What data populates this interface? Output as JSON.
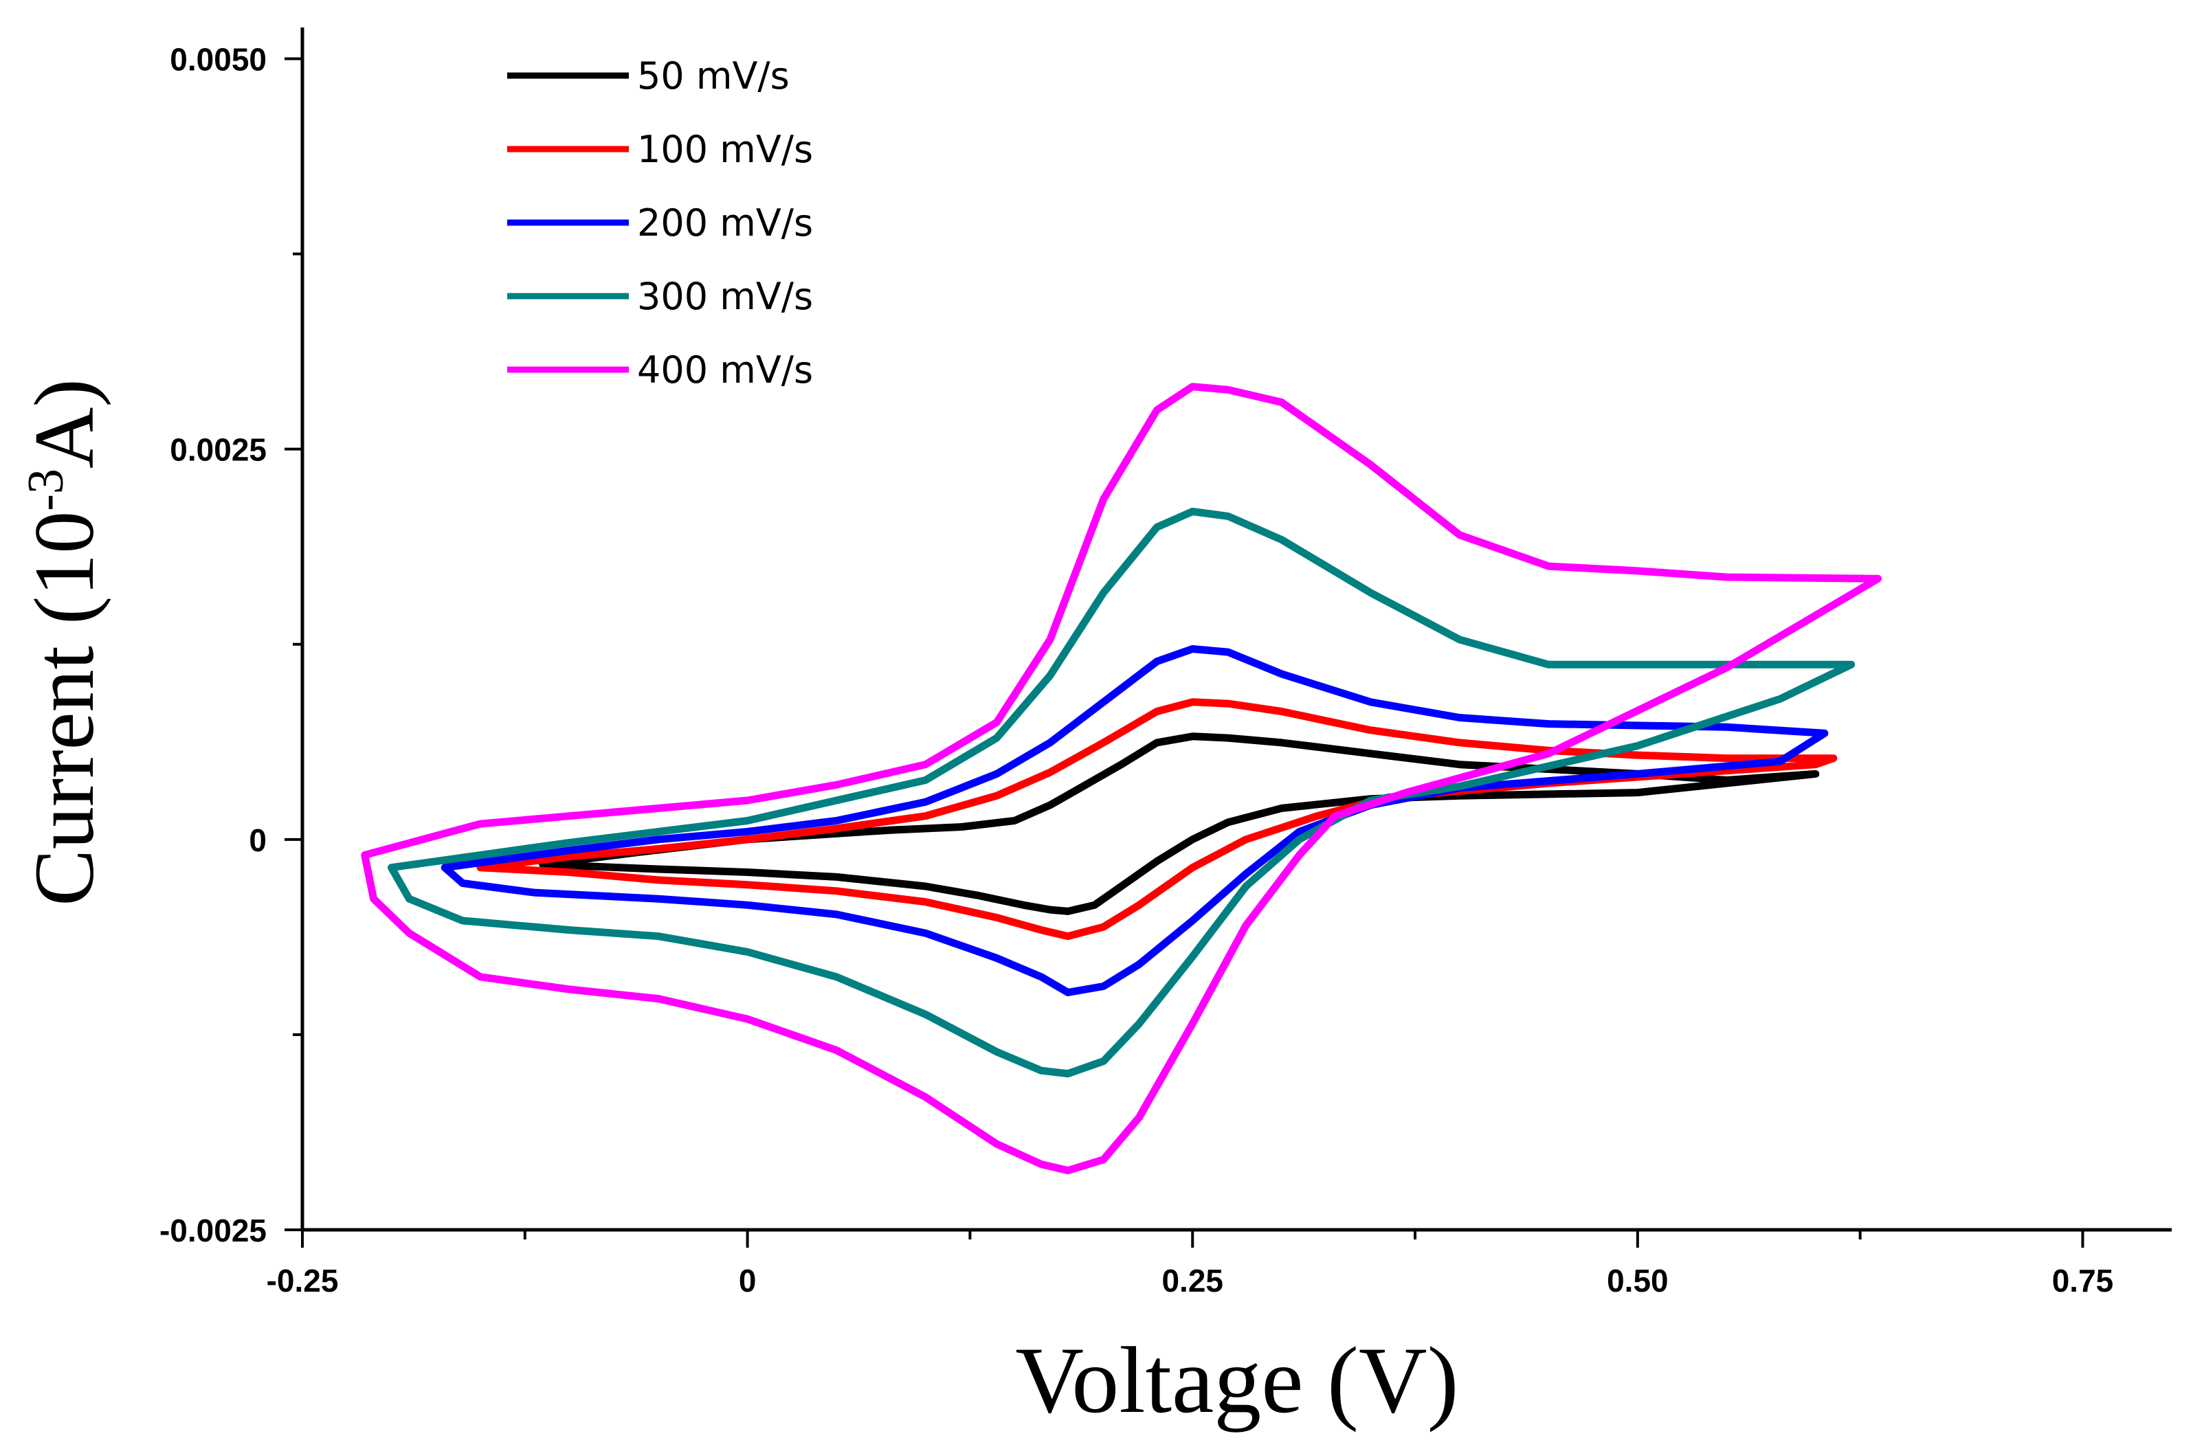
{
  "chart_data": {
    "type": "line",
    "title": "",
    "xlabel": "Voltage (V)",
    "ylabel_parts": {
      "pre": "Current (10",
      "sup": "-3",
      "post": "A)"
    },
    "xlim": [
      -0.25,
      0.8
    ],
    "ylim": [
      -0.0025,
      0.0052
    ],
    "x_ticks": [
      {
        "value": -0.25,
        "label": "-0.25"
      },
      {
        "value": 0,
        "label": "0"
      },
      {
        "value": 0.25,
        "label": "0.25"
      },
      {
        "value": 0.5,
        "label": "0.50"
      },
      {
        "value": 0.75,
        "label": "0.75"
      }
    ],
    "x_minor_ticks": [
      -0.125,
      0.125,
      0.375,
      0.625
    ],
    "y_ticks": [
      {
        "value": -0.0025,
        "label": "-0.0025"
      },
      {
        "value": 0,
        "label": "0"
      },
      {
        "value": 0.0025,
        "label": "0.0025"
      },
      {
        "value": 0.005,
        "label": "0.0050"
      }
    ],
    "y_minor_ticks": [
      -0.00125,
      0.00125,
      0.00375
    ],
    "legend_position": "top-left",
    "series": [
      {
        "name": "50   mV/s",
        "color": "#000000",
        "points": [
          [
            -0.115,
            -0.00016
          ],
          [
            -0.05,
            -0.00019
          ],
          [
            0.0,
            -0.00021
          ],
          [
            0.05,
            -0.00024
          ],
          [
            0.1,
            -0.0003
          ],
          [
            0.13,
            -0.00036
          ],
          [
            0.155,
            -0.00042
          ],
          [
            0.17,
            -0.00045
          ],
          [
            0.18,
            -0.00046
          ],
          [
            0.195,
            -0.00042
          ],
          [
            0.21,
            -0.0003
          ],
          [
            0.23,
            -0.00014
          ],
          [
            0.25,
            0.0
          ],
          [
            0.27,
            0.00011
          ],
          [
            0.3,
            0.0002
          ],
          [
            0.35,
            0.00026
          ],
          [
            0.4,
            0.00028
          ],
          [
            0.5,
            0.0003
          ],
          [
            0.6,
            0.00042
          ],
          [
            0.6,
            0.00042
          ],
          [
            0.55,
            0.00038
          ],
          [
            0.5,
            0.00042
          ],
          [
            0.45,
            0.00045
          ],
          [
            0.4,
            0.00048
          ],
          [
            0.35,
            0.00055
          ],
          [
            0.3,
            0.00062
          ],
          [
            0.27,
            0.00065
          ],
          [
            0.25,
            0.00066
          ],
          [
            0.23,
            0.00062
          ],
          [
            0.21,
            0.00048
          ],
          [
            0.19,
            0.00035
          ],
          [
            0.17,
            0.00022
          ],
          [
            0.15,
            0.00012
          ],
          [
            0.12,
            8e-05
          ],
          [
            0.08,
            6e-05
          ],
          [
            0.04,
            3e-05
          ],
          [
            0.0,
            0.0
          ],
          [
            -0.06,
            -8e-05
          ],
          [
            -0.115,
            -0.00016
          ]
        ]
      },
      {
        "name": "100 mV/s",
        "color": "#ff0000",
        "points": [
          [
            -0.15,
            -0.00018
          ],
          [
            -0.1,
            -0.00021
          ],
          [
            -0.05,
            -0.00026
          ],
          [
            0.0,
            -0.00029
          ],
          [
            0.05,
            -0.00033
          ],
          [
            0.1,
            -0.0004
          ],
          [
            0.14,
            -0.0005
          ],
          [
            0.165,
            -0.00058
          ],
          [
            0.18,
            -0.00062
          ],
          [
            0.2,
            -0.00056
          ],
          [
            0.22,
            -0.00042
          ],
          [
            0.25,
            -0.00018
          ],
          [
            0.28,
            0.0
          ],
          [
            0.32,
            0.00015
          ],
          [
            0.36,
            0.00027
          ],
          [
            0.45,
            0.00036
          ],
          [
            0.6,
            0.00048
          ],
          [
            0.61,
            0.00052
          ],
          [
            0.61,
            0.00052
          ],
          [
            0.55,
            0.00052
          ],
          [
            0.5,
            0.00054
          ],
          [
            0.45,
            0.00057
          ],
          [
            0.4,
            0.00062
          ],
          [
            0.35,
            0.0007
          ],
          [
            0.3,
            0.00082
          ],
          [
            0.27,
            0.00087
          ],
          [
            0.25,
            0.00088
          ],
          [
            0.23,
            0.00082
          ],
          [
            0.2,
            0.00062
          ],
          [
            0.17,
            0.00043
          ],
          [
            0.14,
            0.00028
          ],
          [
            0.1,
            0.00015
          ],
          [
            0.05,
            7e-05
          ],
          [
            0.0,
            0.0
          ],
          [
            -0.05,
            -6e-05
          ],
          [
            -0.1,
            -0.00011
          ],
          [
            -0.15,
            -0.00018
          ]
        ]
      },
      {
        "name": "200 mV/s",
        "color": "#0000ff",
        "points": [
          [
            -0.17,
            -0.00018
          ],
          [
            -0.16,
            -0.00028
          ],
          [
            -0.12,
            -0.00034
          ],
          [
            -0.05,
            -0.00038
          ],
          [
            0.0,
            -0.00042
          ],
          [
            0.05,
            -0.00048
          ],
          [
            0.1,
            -0.0006
          ],
          [
            0.14,
            -0.00076
          ],
          [
            0.165,
            -0.00088
          ],
          [
            0.18,
            -0.00098
          ],
          [
            0.2,
            -0.00094
          ],
          [
            0.22,
            -0.0008
          ],
          [
            0.25,
            -0.00052
          ],
          [
            0.28,
            -0.00022
          ],
          [
            0.31,
            5e-05
          ],
          [
            0.35,
            0.00022
          ],
          [
            0.4,
            0.00033
          ],
          [
            0.5,
            0.00042
          ],
          [
            0.58,
            0.0005
          ],
          [
            0.605,
            0.00068
          ],
          [
            0.605,
            0.00068
          ],
          [
            0.55,
            0.00072
          ],
          [
            0.45,
            0.00074
          ],
          [
            0.4,
            0.00078
          ],
          [
            0.35,
            0.00088
          ],
          [
            0.3,
            0.00106
          ],
          [
            0.27,
            0.0012
          ],
          [
            0.25,
            0.00122
          ],
          [
            0.23,
            0.00114
          ],
          [
            0.2,
            0.00088
          ],
          [
            0.17,
            0.00062
          ],
          [
            0.14,
            0.00042
          ],
          [
            0.1,
            0.00024
          ],
          [
            0.05,
            0.00012
          ],
          [
            0.0,
            5e-05
          ],
          [
            -0.05,
            -0.0
          ],
          [
            -0.1,
            -7e-05
          ],
          [
            -0.17,
            -0.00018
          ]
        ]
      },
      {
        "name": "300 mV/s",
        "color": "#008080",
        "points": [
          [
            -0.2,
            -0.00018
          ],
          [
            -0.19,
            -0.00038
          ],
          [
            -0.16,
            -0.00052
          ],
          [
            -0.1,
            -0.00058
          ],
          [
            -0.05,
            -0.00062
          ],
          [
            0.0,
            -0.00072
          ],
          [
            0.05,
            -0.00088
          ],
          [
            0.1,
            -0.00112
          ],
          [
            0.14,
            -0.00136
          ],
          [
            0.165,
            -0.00148
          ],
          [
            0.18,
            -0.0015
          ],
          [
            0.2,
            -0.00142
          ],
          [
            0.22,
            -0.00118
          ],
          [
            0.25,
            -0.00075
          ],
          [
            0.28,
            -0.0003
          ],
          [
            0.31,
            0.0
          ],
          [
            0.35,
            0.00025
          ],
          [
            0.4,
            0.00034
          ],
          [
            0.5,
            0.0006
          ],
          [
            0.58,
            0.0009
          ],
          [
            0.62,
            0.00112
          ],
          [
            0.62,
            0.00112
          ],
          [
            0.55,
            0.00112
          ],
          [
            0.5,
            0.00112
          ],
          [
            0.45,
            0.00112
          ],
          [
            0.4,
            0.00128
          ],
          [
            0.35,
            0.00158
          ],
          [
            0.3,
            0.00192
          ],
          [
            0.27,
            0.00207
          ],
          [
            0.25,
            0.0021
          ],
          [
            0.23,
            0.002
          ],
          [
            0.2,
            0.00158
          ],
          [
            0.17,
            0.00105
          ],
          [
            0.14,
            0.00065
          ],
          [
            0.1,
            0.00038
          ],
          [
            0.05,
            0.00025
          ],
          [
            0.0,
            0.00012
          ],
          [
            -0.05,
            5e-05
          ],
          [
            -0.1,
            -2e-05
          ],
          [
            -0.2,
            -0.00018
          ]
        ]
      },
      {
        "name": "400 mV/s",
        "color": "#ff00ff",
        "points": [
          [
            -0.215,
            -0.0001
          ],
          [
            -0.21,
            -0.00038
          ],
          [
            -0.19,
            -0.0006
          ],
          [
            -0.15,
            -0.00088
          ],
          [
            -0.1,
            -0.00096
          ],
          [
            -0.05,
            -0.00102
          ],
          [
            0.0,
            -0.00115
          ],
          [
            0.05,
            -0.00135
          ],
          [
            0.1,
            -0.00165
          ],
          [
            0.14,
            -0.00195
          ],
          [
            0.165,
            -0.00208
          ],
          [
            0.18,
            -0.00212
          ],
          [
            0.2,
            -0.00205
          ],
          [
            0.22,
            -0.00178
          ],
          [
            0.25,
            -0.00118
          ],
          [
            0.28,
            -0.00055
          ],
          [
            0.31,
            -0.0001
          ],
          [
            0.33,
            0.00015
          ],
          [
            0.37,
            0.0003
          ],
          [
            0.45,
            0.00055
          ],
          [
            0.55,
            0.0011
          ],
          [
            0.635,
            0.00167
          ],
          [
            0.635,
            0.00167
          ],
          [
            0.55,
            0.00168
          ],
          [
            0.5,
            0.00172
          ],
          [
            0.45,
            0.00175
          ],
          [
            0.4,
            0.00195
          ],
          [
            0.35,
            0.0024
          ],
          [
            0.3,
            0.0028
          ],
          [
            0.27,
            0.00288
          ],
          [
            0.25,
            0.0029
          ],
          [
            0.23,
            0.00275
          ],
          [
            0.2,
            0.00218
          ],
          [
            0.17,
            0.00128
          ],
          [
            0.14,
            0.00075
          ],
          [
            0.1,
            0.00048
          ],
          [
            0.05,
            0.00035
          ],
          [
            0.0,
            0.00025
          ],
          [
            -0.05,
            0.0002
          ],
          [
            -0.1,
            0.00015
          ],
          [
            -0.15,
            0.0001
          ],
          [
            -0.215,
            -0.0001
          ]
        ]
      }
    ]
  }
}
